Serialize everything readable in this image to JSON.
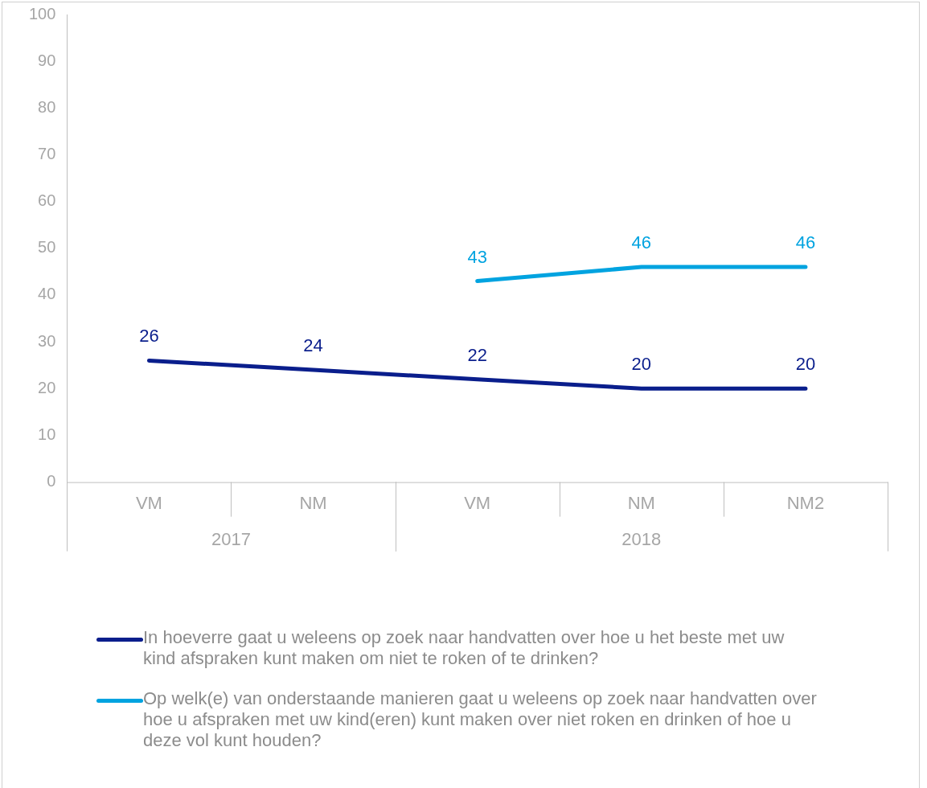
{
  "chart_data": {
    "type": "line",
    "categories": [
      "VM",
      "NM",
      "VM",
      "NM",
      "NM2"
    ],
    "series": [
      {
        "name": "In hoeverre gaat u weleens op zoek naar handvatten over hoe u het beste met uw kind afspraken kunt maken om niet te roken of te drinken?",
        "color": "#0a1e8c",
        "values": [
          26,
          24,
          22,
          20,
          20
        ]
      },
      {
        "name": "Op welk(e) van onderstaande manieren gaat u weleens op zoek naar handvatten over hoe u afspraken met uw kind(eren) kunt maken over niet roken en drinken of hoe u deze vol kunt houden?",
        "color": "#00a3e0",
        "values": [
          null,
          null,
          43,
          46,
          46
        ]
      }
    ],
    "annotations": [
      "2017",
      "2018"
    ],
    "ylim": [
      0,
      100
    ],
    "yticks": [
      0,
      10,
      20,
      30,
      40,
      50,
      60,
      70,
      80,
      90,
      100
    ],
    "grid": false,
    "legend": "bottom",
    "marker": "none",
    "line_style": "solid",
    "data_labels": true
  }
}
